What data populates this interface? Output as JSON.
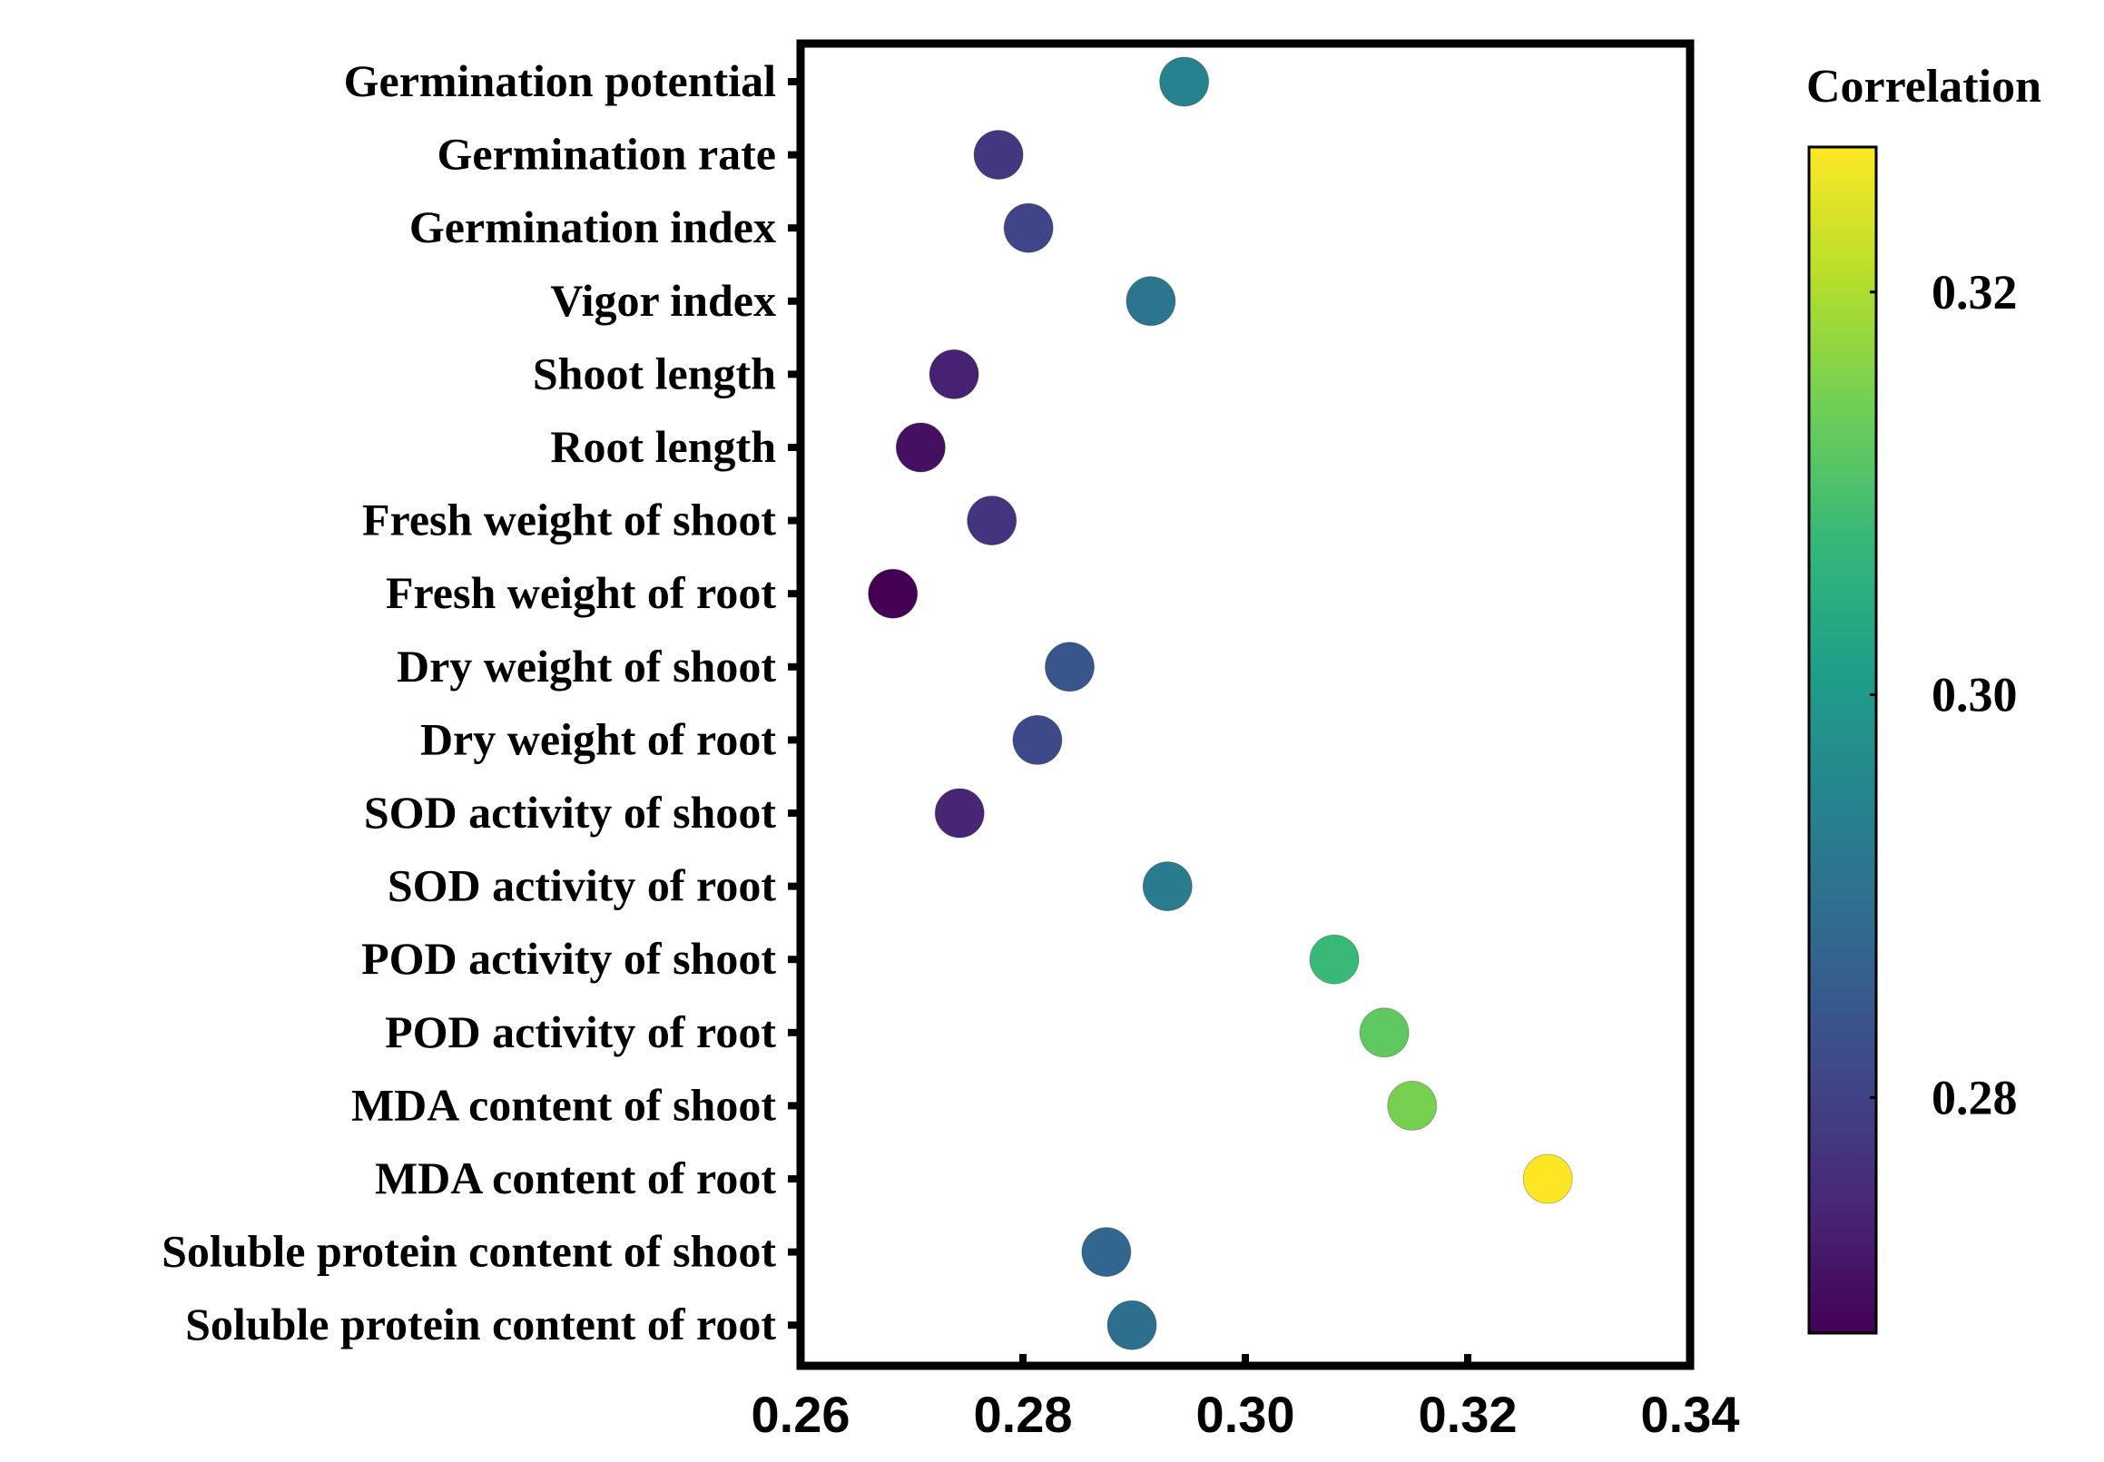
{
  "chart_data": {
    "type": "scatter",
    "title": "",
    "xlabel": "",
    "ylabel": "",
    "xlim": [
      0.26,
      0.34
    ],
    "xticks": [
      "0.26",
      "0.28",
      "0.30",
      "0.32",
      "0.34"
    ],
    "categories": [
      "Germination potential",
      "Germination rate",
      "Germination index",
      "Vigor index",
      "Shoot length",
      "Root length",
      "Fresh weight of shoot",
      "Fresh weight of root",
      "Dry weight of shoot",
      "Dry weight of root",
      "SOD activity of shoot",
      "SOD activity of root",
      "POD activity of shoot",
      "POD activity of root",
      "MDA content of shoot",
      "MDA content of root",
      "Soluble protein content of shoot",
      "Soluble protein content of root"
    ],
    "values": [
      0.2945,
      0.2778,
      0.2805,
      0.2915,
      0.2738,
      0.2708,
      0.2772,
      0.2683,
      0.2842,
      0.2813,
      0.2743,
      0.293,
      0.308,
      0.3125,
      0.315,
      0.3272,
      0.2875,
      0.2898
    ],
    "colorbar": {
      "title": "Correlation",
      "range": [
        0.2683,
        0.3272
      ],
      "ticks": [
        "0.28",
        "0.30",
        "0.32"
      ],
      "colormap": "viridis",
      "colors": [
        "#440154",
        "#482878",
        "#3e4989",
        "#31688e",
        "#26828e",
        "#1f9e89",
        "#35b779",
        "#6ece58",
        "#b5de2b",
        "#fde725"
      ]
    }
  }
}
